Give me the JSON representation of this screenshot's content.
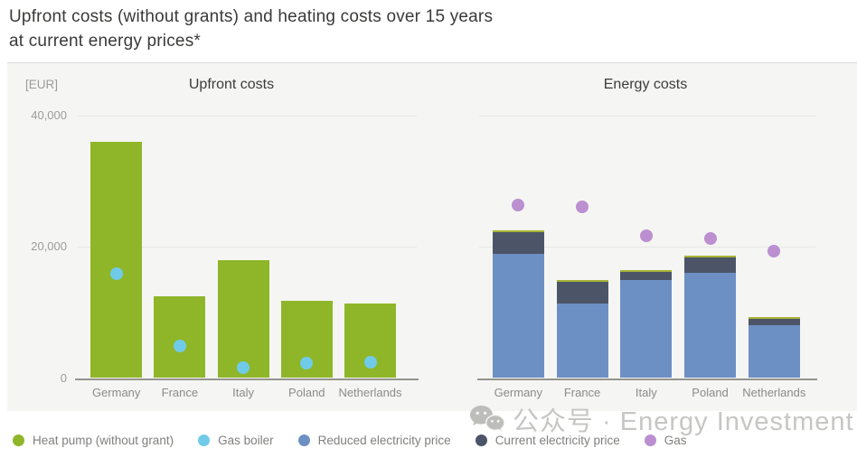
{
  "header": {
    "title_line1": "Upfront costs (without grants) and heating costs over 15 years",
    "title_line2": "at current energy prices*"
  },
  "unit_label": "[EUR]",
  "watermark": {
    "icon": "wechat-icon",
    "text": "公众号 · Energy Investment"
  },
  "legend": [
    {
      "label": "Heat pump (without grant)",
      "color": "#8fb629"
    },
    {
      "label": "Gas boiler",
      "color": "#70cbe9"
    },
    {
      "label": "Reduced electricity price",
      "color": "#6d90c4"
    },
    {
      "label": "Current electricity price",
      "color": "#4c5568"
    },
    {
      "label": "Gas",
      "color": "#bb8fd0"
    }
  ],
  "chart_data": [
    {
      "type": "bar",
      "title": "Upfront costs",
      "unit": "EUR",
      "categories": [
        "Germany",
        "France",
        "Italy",
        "Poland",
        "Netherlands"
      ],
      "series": [
        {
          "name": "Heat pump (without grant)",
          "render": "bar",
          "color": "#8fb629",
          "values": [
            36000,
            12400,
            18000,
            11800,
            11400
          ]
        },
        {
          "name": "Gas boiler",
          "render": "point",
          "color": "#70cbe9",
          "values": [
            15900,
            4900,
            1600,
            2300,
            2400
          ]
        }
      ],
      "ylim": [
        0,
        44000
      ],
      "yticks": [
        0,
        20000,
        40000
      ],
      "tick_labels": [
        "0",
        "20,000",
        "40,000"
      ],
      "grid": "horizontal",
      "legend_position": "bottom"
    },
    {
      "type": "stacked-bar",
      "title": "Energy costs",
      "unit": "EUR",
      "categories": [
        "Germany",
        "France",
        "Italy",
        "Poland",
        "Netherlands"
      ],
      "series": [
        {
          "name": "Reduced electricity price",
          "render": "bar",
          "color": "#6d90c4",
          "values": [
            19000,
            11300,
            14900,
            16000,
            8000
          ]
        },
        {
          "name": "Current electricity price",
          "render": "bar",
          "color": "#4c5568",
          "values": [
            3200,
            3400,
            1300,
            2400,
            1000
          ]
        },
        {
          "name": "Gas",
          "render": "point",
          "color": "#bb8fd0",
          "values": [
            26400,
            26100,
            21700,
            21300,
            19300
          ]
        }
      ],
      "stack_cap_color": "#a6b335",
      "ylim": [
        0,
        44000
      ],
      "yticks": [
        0,
        20000,
        40000
      ],
      "tick_labels": [
        "0",
        "20,000",
        "40,000"
      ],
      "grid": "horizontal",
      "legend_position": "bottom"
    }
  ]
}
